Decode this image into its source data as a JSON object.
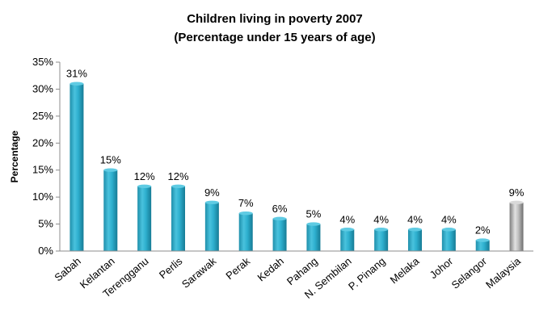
{
  "chart_data": {
    "type": "bar",
    "title": "Children living in poverty 2007",
    "subtitle": "(Percentage under 15 years of age)",
    "xlabel": "",
    "ylabel": "Percentage",
    "ylim": [
      0,
      35
    ],
    "yticks": [
      "0%",
      "5%",
      "10%",
      "15%",
      "20%",
      "25%",
      "30%",
      "35%"
    ],
    "categories": [
      "Sabah",
      "Kelantan",
      "Terengganu",
      "Perlis",
      "Sarawak",
      "Perak",
      "Kedah",
      "Pahang",
      "N. Sembilan",
      "P. Pinang",
      "Melaka",
      "Johor",
      "Selangor",
      "Malaysia"
    ],
    "values": [
      31,
      15,
      12,
      12,
      9,
      7,
      6,
      5,
      4,
      4,
      4,
      4,
      2,
      9
    ],
    "data_labels": [
      "31%",
      "15%",
      "12%",
      "12%",
      "9%",
      "7%",
      "6%",
      "5%",
      "4%",
      "4%",
      "4%",
      "4%",
      "2%",
      "9%"
    ],
    "highlight_category": "Malaysia",
    "colors": {
      "bar": "#2aa6c4",
      "bar_highlight": "#a9a9a9",
      "axis": "#8c8c8c"
    },
    "grid": false,
    "legend": "none"
  }
}
